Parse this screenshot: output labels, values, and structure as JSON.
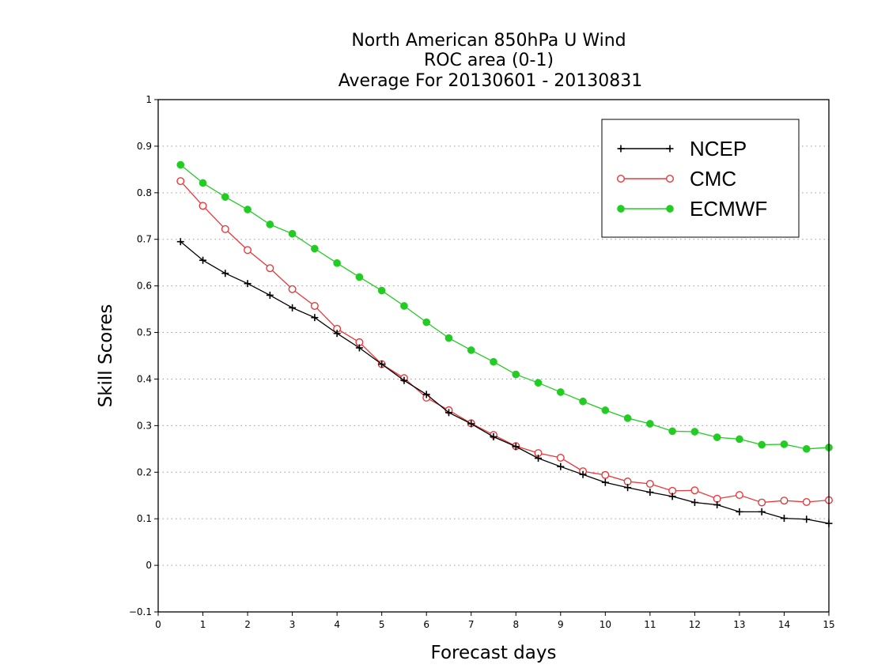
{
  "chart_data": {
    "type": "line",
    "title_lines": [
      "North American 850hPa U Wind",
      "ROC area (0-1)",
      "Average For 20130601 - 20130831"
    ],
    "xlabel": "Forecast days",
    "ylabel": "Skill Scores",
    "xlim": [
      0,
      15
    ],
    "ylim": [
      -0.1,
      1
    ],
    "xticks": [
      "0",
      "1",
      "2",
      "3",
      "4",
      "5",
      "6",
      "7",
      "8",
      "9",
      "10",
      "11",
      "12",
      "13",
      "14",
      "15"
    ],
    "yticks": [
      "−0.1",
      "0",
      "0.1",
      "0.2",
      "0.3",
      "0.4",
      "0.5",
      "0.6",
      "0.7",
      "0.8",
      "0.9",
      "1"
    ],
    "grid": "horizontal dotted",
    "legend_position": "top-right",
    "x": [
      0.5,
      1,
      1.5,
      2,
      2.5,
      3,
      3.5,
      4,
      4.5,
      5,
      5.5,
      6,
      6.5,
      7,
      7.5,
      8,
      8.5,
      9,
      9.5,
      10,
      10.5,
      11,
      11.5,
      12,
      12.5,
      13,
      13.5,
      14,
      14.5,
      15
    ],
    "series": [
      {
        "name": "NCEP",
        "color": "#000000",
        "marker": "plus",
        "values": [
          0.695,
          0.655,
          0.627,
          0.605,
          0.58,
          0.553,
          0.532,
          0.498,
          0.467,
          0.432,
          0.397,
          0.367,
          0.328,
          0.304,
          0.276,
          0.255,
          0.23,
          0.212,
          0.195,
          0.178,
          0.167,
          0.157,
          0.148,
          0.135,
          0.13,
          0.115,
          0.115,
          0.101,
          0.099,
          0.09
        ]
      },
      {
        "name": "CMC",
        "color": "#e8393c",
        "marker": "open-circle",
        "values": [
          0.825,
          0.772,
          0.722,
          0.677,
          0.638,
          0.593,
          0.557,
          0.508,
          0.479,
          0.432,
          0.402,
          0.36,
          0.333,
          0.305,
          0.28,
          0.256,
          0.241,
          0.231,
          0.202,
          0.194,
          0.18,
          0.175,
          0.16,
          0.161,
          0.143,
          0.151,
          0.135,
          0.139,
          0.136,
          0.14
        ]
      },
      {
        "name": "ECMWF",
        "color": "#22cc22",
        "marker": "filled-circle",
        "values": [
          0.86,
          0.821,
          0.791,
          0.764,
          0.732,
          0.712,
          0.68,
          0.649,
          0.619,
          0.59,
          0.557,
          0.522,
          0.488,
          0.462,
          0.437,
          0.41,
          0.392,
          0.372,
          0.352,
          0.333,
          0.316,
          0.304,
          0.288,
          0.287,
          0.275,
          0.271,
          0.259,
          0.26,
          0.25,
          0.253
        ]
      }
    ]
  }
}
